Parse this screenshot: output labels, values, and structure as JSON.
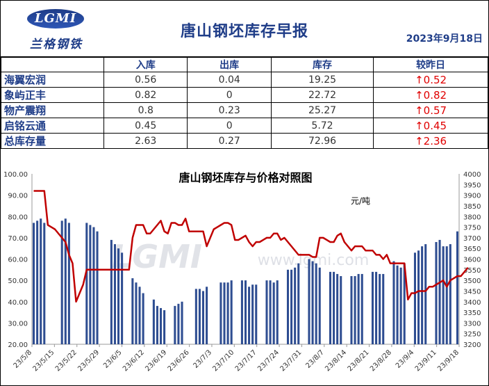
{
  "header": {
    "logo_mark": "LGMI",
    "logo_text": "兰格钢铁",
    "title": "唐山钢坯库存早报",
    "date": "2023年9月18日"
  },
  "table": {
    "columns": [
      "",
      "入库",
      "出库",
      "库存",
      "较昨日"
    ],
    "rows": [
      {
        "name": "海翼宏润",
        "in": "0.56",
        "out": "0.04",
        "stock": "19.25",
        "change": "↑0.52"
      },
      {
        "name": "象屿正丰",
        "in": "0.82",
        "out": "0",
        "stock": "22.72",
        "change": "↑0.82"
      },
      {
        "name": "物产震翔",
        "in": "0.8",
        "out": "0.23",
        "stock": "25.27",
        "change": "↑0.57"
      },
      {
        "name": "启铭云通",
        "in": "0.45",
        "out": "0",
        "stock": "5.72",
        "change": "↑0.45"
      },
      {
        "name": "总库存量",
        "in": "2.63",
        "out": "0.27",
        "stock": "72.96",
        "change": "↑2.36"
      }
    ]
  },
  "chart_data": {
    "type": "bar",
    "title": "唐山钢坯库存与价格对照图",
    "unit_label": "元/吨",
    "watermark_logo": "LGMI",
    "watermark": "www.lgmi.com",
    "colors": {
      "bars": "#2e4d91",
      "line": "#c00000"
    },
    "left_axis": {
      "min": 20,
      "max": 100,
      "step": 10
    },
    "right_axis": {
      "min": 3200,
      "max": 4000,
      "step": 50
    },
    "x_tick_labels": [
      "23/5/8",
      "23/5/15",
      "23/5/22",
      "23/5/29",
      "23/6/5",
      "23/6/12",
      "23/6/19",
      "23/6/26",
      "23/7/3",
      "23/7/10",
      "23/7/17",
      "23/7/24",
      "23/7/31",
      "23/8/7",
      "23/8/14",
      "23/8/21",
      "23/8/28",
      "23/9/4",
      "23/9/11",
      "23/9/18"
    ],
    "series": [
      {
        "axis": "left",
        "kind": "bar",
        "values": [
          77,
          78,
          79,
          77,
          null,
          null,
          null,
          null,
          78,
          79,
          77,
          null,
          null,
          null,
          null,
          77,
          76,
          75,
          73,
          null,
          null,
          null,
          69,
          67,
          65,
          63,
          null,
          null,
          51,
          49,
          47,
          44,
          null,
          null,
          41,
          38,
          37,
          36,
          null,
          null,
          38,
          39,
          40,
          null,
          null,
          null,
          46,
          46,
          45,
          47,
          null,
          null,
          null,
          49,
          49,
          49,
          50,
          null,
          null,
          50,
          50,
          47,
          48,
          48,
          null,
          null,
          50,
          50,
          49,
          50,
          null,
          null,
          55,
          55,
          56,
          58,
          null,
          null,
          60,
          59,
          58,
          56,
          null,
          null,
          54,
          54,
          53,
          52,
          null,
          null,
          52,
          52,
          53,
          53,
          null,
          null,
          54,
          54,
          53,
          53,
          null,
          null,
          59,
          57,
          56,
          58,
          null,
          null,
          63,
          64,
          66,
          67,
          null,
          null,
          68,
          69,
          66,
          66,
          67,
          null,
          73
        ]
      },
      {
        "axis": "right",
        "kind": "line",
        "values": [
          3920,
          3920,
          3920,
          3920,
          3760,
          3750,
          3740,
          3720,
          3700,
          3680,
          3620,
          3580,
          3400,
          3440,
          3480,
          3550,
          3550,
          3550,
          3550,
          3550,
          3550,
          3550,
          3550,
          3550,
          3550,
          3550,
          3550,
          3550,
          3700,
          3760,
          3760,
          3760,
          3720,
          3720,
          3740,
          3760,
          3780,
          3730,
          3720,
          3770,
          3770,
          3760,
          3760,
          3790,
          3730,
          3730,
          3730,
          3730,
          3730,
          3660,
          3700,
          3740,
          3750,
          3760,
          3770,
          3770,
          3760,
          3690,
          3690,
          3700,
          3710,
          3680,
          3660,
          3680,
          3680,
          3690,
          3700,
          3700,
          3720,
          3720,
          3690,
          3700,
          3680,
          3660,
          3640,
          3620,
          3620,
          3620,
          3620,
          3610,
          3610,
          3700,
          3700,
          3690,
          3680,
          3680,
          3710,
          3720,
          3680,
          3660,
          3640,
          3660,
          3660,
          3660,
          3640,
          3640,
          3640,
          3620,
          3620,
          3600,
          3620,
          3580,
          3580,
          3580,
          3580,
          3580,
          3410,
          3440,
          3440,
          3450,
          3450,
          3450,
          3470,
          3470,
          3480,
          3490,
          3500,
          3470,
          3500,
          3510,
          3520,
          3520,
          3540,
          3560
        ]
      }
    ]
  }
}
